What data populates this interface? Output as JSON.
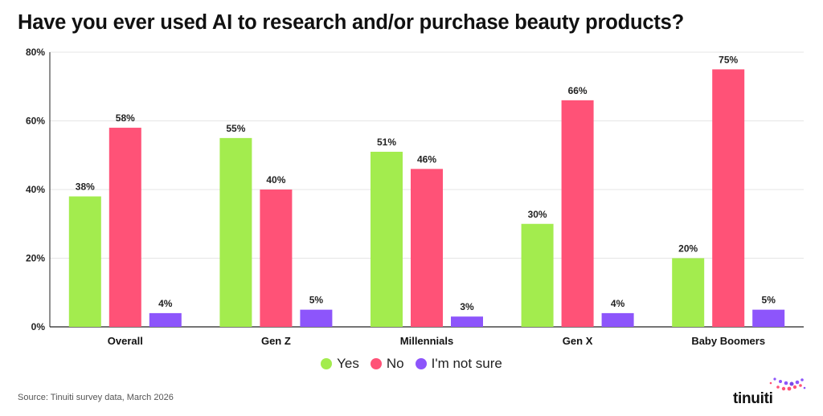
{
  "title": "Have you ever used AI to research and/or purchase beauty products?",
  "source": "Source: Tinuiti survey data, March 2026",
  "logo_text": "tinuiti",
  "colors": {
    "yes": "#a3ec4e",
    "no": "#ff5277",
    "not_sure": "#8d55fb",
    "grid": "#e5e5e5",
    "axis": "#222222"
  },
  "chart_data": {
    "type": "bar",
    "categories": [
      "Overall",
      "Gen Z",
      "Millennials",
      "Gen X",
      "Baby Boomers"
    ],
    "series": [
      {
        "name": "Yes",
        "values": [
          38,
          55,
          51,
          30,
          20
        ]
      },
      {
        "name": "No",
        "values": [
          58,
          40,
          46,
          66,
          75
        ]
      },
      {
        "name": "I'm not sure",
        "values": [
          4,
          5,
          3,
          4,
          5
        ]
      }
    ],
    "y_ticks": [
      "0%",
      "20%",
      "40%",
      "60%",
      "80%"
    ],
    "ylim": [
      0,
      80
    ],
    "grid": true,
    "legend_position": "bottom-center"
  },
  "legend": [
    {
      "label": "Yes",
      "color_key": "yes"
    },
    {
      "label": "No",
      "color_key": "no"
    },
    {
      "label": "I'm not sure",
      "color_key": "not_sure"
    }
  ]
}
